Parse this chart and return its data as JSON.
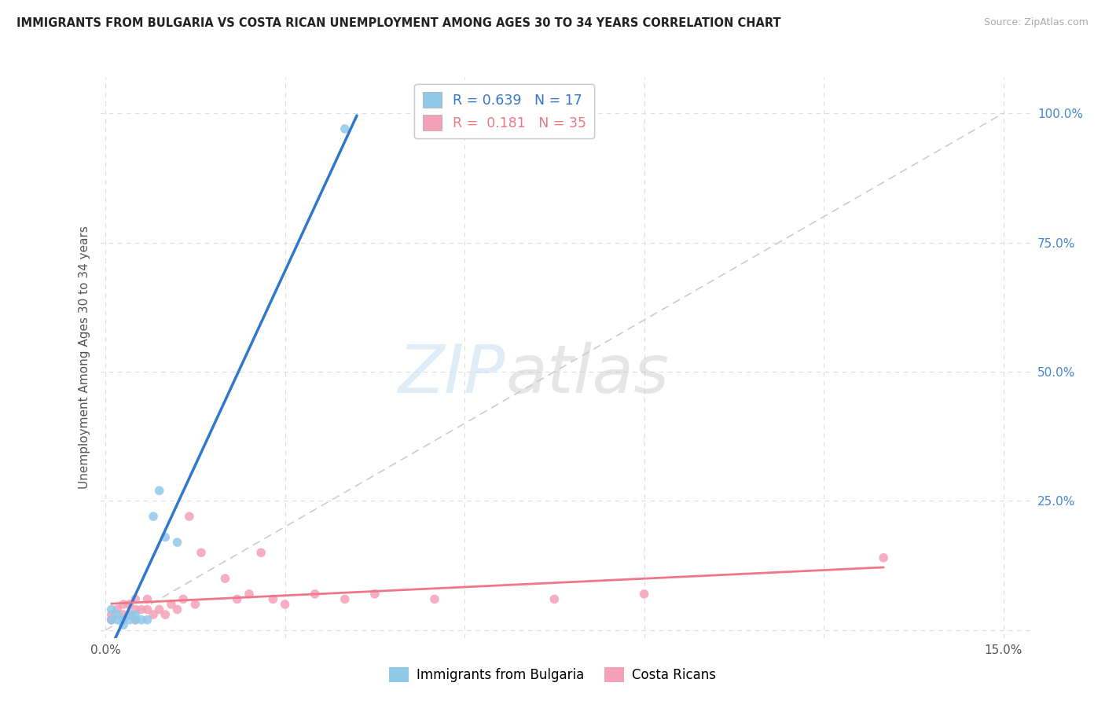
{
  "title": "IMMIGRANTS FROM BULGARIA VS COSTA RICAN UNEMPLOYMENT AMONG AGES 30 TO 34 YEARS CORRELATION CHART",
  "source": "Source: ZipAtlas.com",
  "ylabel": "Unemployment Among Ages 30 to 34 years",
  "bg_color": "#ffffff",
  "grid_color": "#dddddd",
  "diag_line_color": "#cccccc",
  "bulgaria_color": "#90c8e8",
  "costa_rica_color": "#f4a0b8",
  "bulgaria_line_color": "#3377cc",
  "costa_rica_line_color": "#ee7788",
  "legend_R_bulgaria": "0.639",
  "legend_N_bulgaria": "17",
  "legend_R_costa_rica": "0.181",
  "legend_N_costa_rica": "35",
  "bulgaria_scatter_x": [
    0.001,
    0.001,
    0.002,
    0.002,
    0.003,
    0.003,
    0.004,
    0.004,
    0.005,
    0.005,
    0.006,
    0.007,
    0.008,
    0.009,
    0.01,
    0.012,
    0.04
  ],
  "bulgaria_scatter_y": [
    0.02,
    0.04,
    0.02,
    0.03,
    0.01,
    0.02,
    0.02,
    0.03,
    0.02,
    0.03,
    0.02,
    0.02,
    0.22,
    0.27,
    0.18,
    0.17,
    0.97
  ],
  "costa_rica_scatter_x": [
    0.001,
    0.001,
    0.002,
    0.003,
    0.003,
    0.004,
    0.004,
    0.005,
    0.005,
    0.005,
    0.006,
    0.007,
    0.007,
    0.008,
    0.009,
    0.01,
    0.011,
    0.012,
    0.013,
    0.014,
    0.015,
    0.016,
    0.02,
    0.022,
    0.024,
    0.026,
    0.028,
    0.03,
    0.035,
    0.04,
    0.045,
    0.055,
    0.075,
    0.09,
    0.13
  ],
  "costa_rica_scatter_y": [
    0.02,
    0.03,
    0.04,
    0.03,
    0.05,
    0.03,
    0.05,
    0.02,
    0.04,
    0.06,
    0.04,
    0.04,
    0.06,
    0.03,
    0.04,
    0.03,
    0.05,
    0.04,
    0.06,
    0.22,
    0.05,
    0.15,
    0.1,
    0.06,
    0.07,
    0.15,
    0.06,
    0.05,
    0.07,
    0.06,
    0.07,
    0.06,
    0.06,
    0.07,
    0.14
  ],
  "xlim": [
    -0.001,
    0.155
  ],
  "ylim": [
    -0.015,
    1.07
  ],
  "x_ticks": [
    0.0,
    0.15
  ],
  "x_tick_labels": [
    "0.0%",
    "15.0%"
  ],
  "y_ticks": [
    0.0,
    0.25,
    0.5,
    0.75,
    1.0
  ],
  "y_tick_labels_right": [
    "",
    "25.0%",
    "50.0%",
    "75.0%",
    "100.0%"
  ],
  "bulgaria_line_x": [
    -0.001,
    0.042
  ],
  "costa_rica_line_x": [
    0.001,
    0.13
  ]
}
